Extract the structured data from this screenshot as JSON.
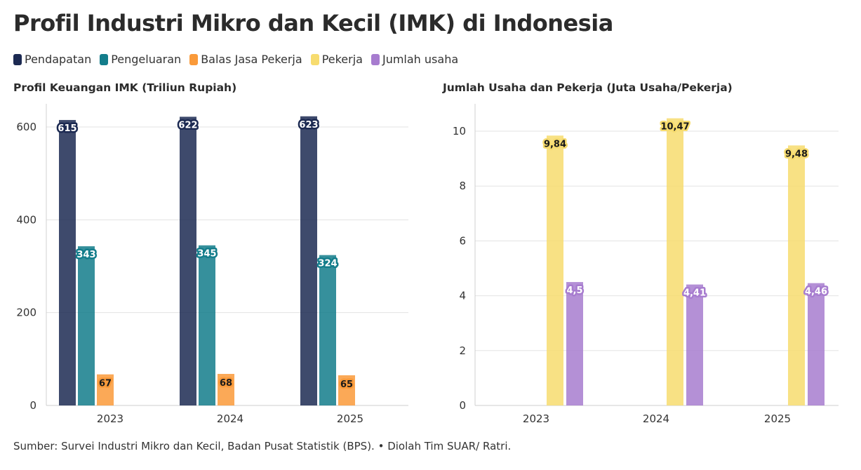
{
  "title": "Profil Industri Mikro dan Kecil (IMK) di Indonesia",
  "legend": [
    {
      "label": "Pendapatan",
      "color": "#1c2a52"
    },
    {
      "label": "Pengeluaran",
      "color": "#137d8b"
    },
    {
      "label": "Balas Jasa Pekerja",
      "color": "#fa9a3a"
    },
    {
      "label": "Pekerja",
      "color": "#f7dc6f"
    },
    {
      "label": "Jumlah usaha",
      "color": "#a77ccf"
    }
  ],
  "source": "Sumber: Survei Industri Mikro dan Kecil, Badan Pusat Statistik (BPS). • Diolah Tim SUAR/ Ratri.",
  "chart_data": [
    {
      "type": "bar",
      "title": "Profil Keuangan IMK (Triliun Rupiah)",
      "categories": [
        "2023",
        "2024",
        "2025"
      ],
      "ylim": [
        0,
        650
      ],
      "yticks": [
        0,
        200,
        400,
        600
      ],
      "series": [
        {
          "name": "Pendapatan",
          "color": "#1c2a52",
          "values": [
            615,
            622,
            623
          ],
          "labels": [
            "615",
            "622",
            "623"
          ]
        },
        {
          "name": "Pengeluaran",
          "color": "#137d8b",
          "values": [
            343,
            345,
            324
          ],
          "labels": [
            "343",
            "345",
            "324"
          ]
        },
        {
          "name": "Balas Jasa Pekerja",
          "color": "#fa9a3a",
          "values": [
            67,
            68,
            65
          ],
          "labels": [
            "67",
            "68",
            "65"
          ]
        }
      ],
      "grid": true
    },
    {
      "type": "bar",
      "title": "Jumlah Usaha dan Pekerja (Juta Usaha/Pekerja)",
      "categories": [
        "2023",
        "2024",
        "2025"
      ],
      "ylim": [
        0,
        11
      ],
      "yticks": [
        0,
        2,
        4,
        6,
        8,
        10
      ],
      "series": [
        {
          "name": "Pekerja",
          "color": "#f7dc6f",
          "values": [
            9.84,
            10.47,
            9.48
          ],
          "labels": [
            "9,84",
            "10,47",
            "9,48"
          ]
        },
        {
          "name": "Jumlah usaha",
          "color": "#a77ccf",
          "values": [
            4.5,
            4.41,
            4.46
          ],
          "labels": [
            "4,5",
            "4,41",
            "4,46"
          ]
        }
      ],
      "grid": true
    }
  ]
}
